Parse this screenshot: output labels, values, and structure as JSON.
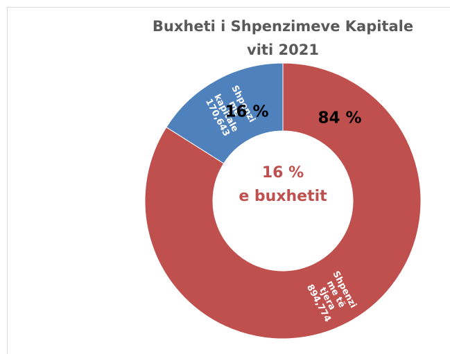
{
  "chart_data": {
    "type": "donut",
    "title": [
      "Buxheti i Shpenzimeve Kapitale",
      "viti 2021"
    ],
    "categories": [
      [
        "Shpenzi",
        "me të",
        "tjera"
      ],
      [
        "Shpenzi",
        "me",
        "kapitale"
      ]
    ],
    "values": [
      894774,
      170643
    ],
    "value_labels": [
      "894,774",
      "170,643"
    ],
    "percents": [
      84,
      16
    ],
    "percent_labels": [
      "84 %",
      "16 %"
    ],
    "colors": [
      "#c0504d",
      "#4f81bd"
    ],
    "center_label": [
      "16 %",
      "e buxhetit"
    ]
  }
}
